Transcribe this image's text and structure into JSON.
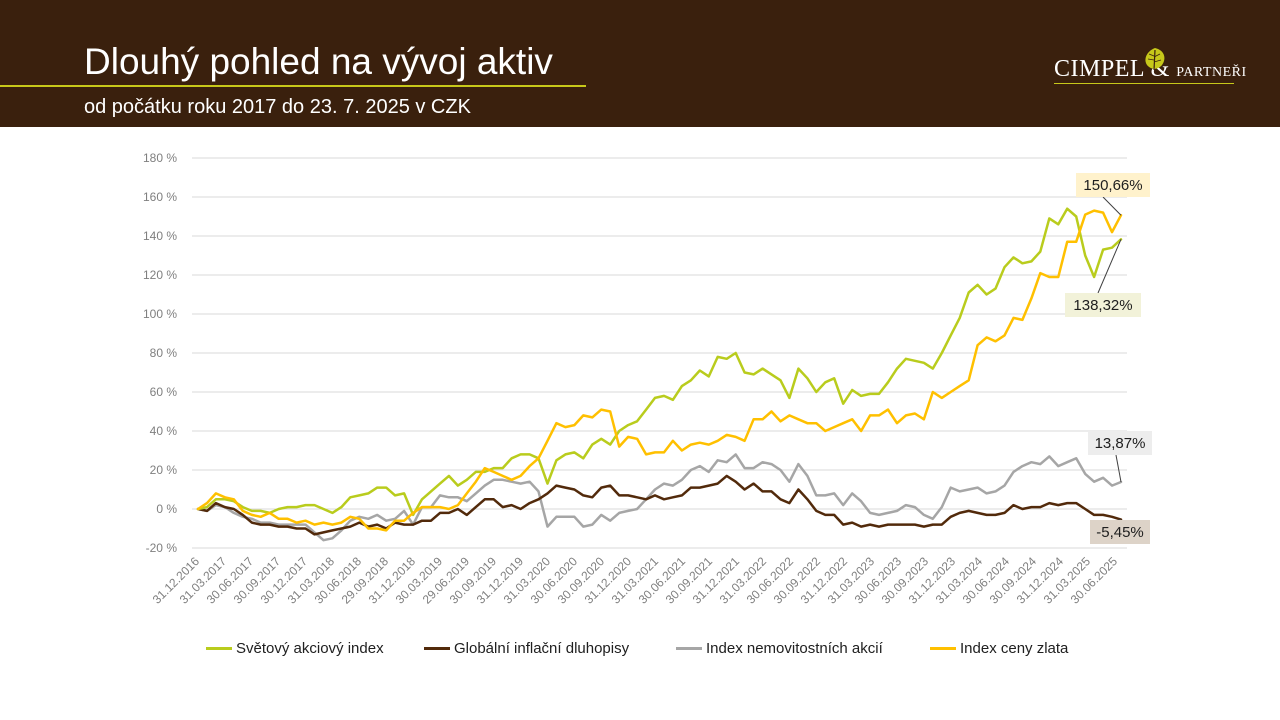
{
  "header": {
    "title": "Dlouhý pohled na vývoj aktiv",
    "subtitle": "od počátku roku 2017 do 23. 7. 2025 v CZK"
  },
  "logo": {
    "text_main": "CIMPEL",
    "text_amp": "&",
    "text_tail": "PARTNEŘI"
  },
  "colors": {
    "header_bg": "#3a200d",
    "accent": "#c7c81a",
    "world_equity": "#b9cc1d",
    "inflation_bonds": "#522a0b",
    "real_estate": "#a6a6a6",
    "gold": "#ffc000"
  },
  "chart_data": {
    "type": "line",
    "ylim": [
      -20,
      180
    ],
    "y_ticks": [
      -20,
      0,
      20,
      40,
      60,
      80,
      100,
      120,
      140,
      160,
      180
    ],
    "y_tick_labels": [
      "-20 %",
      "0 %",
      "20 %",
      "40 %",
      "60 %",
      "80 %",
      "100 %",
      "120 %",
      "140 %",
      "160 %",
      "180 %"
    ],
    "grid": true,
    "legend_position": "bottom",
    "x_labels": [
      "31.12.2016",
      "31.03.2017",
      "30.06.2017",
      "30.09.2017",
      "30.12.2017",
      "31.03.2018",
      "30.06.2018",
      "29.09.2018",
      "31.12.2018",
      "30.03.2019",
      "29.06.2019",
      "30.09.2019",
      "31.12.2019",
      "31.03.2020",
      "30.06.2020",
      "30.09.2020",
      "31.12.2020",
      "31.03.2021",
      "30.06.2021",
      "30.09.2021",
      "31.12.2021",
      "31.03.2022",
      "30.06.2022",
      "30.09.2022",
      "31.12.2022",
      "31.03.2023",
      "30.06.2023",
      "30.09.2023",
      "31.12.2023",
      "31.03.2024",
      "30.06.2024",
      "30.09.2024",
      "31.12.2024",
      "31.03.2025",
      "30.06.2025"
    ],
    "series": [
      {
        "name": "Světový akciový index",
        "color": "#b9cc1d",
        "end_label": "138,32%",
        "values": [
          0,
          1,
          5,
          5,
          4,
          1,
          -1,
          -1,
          -2,
          0,
          1,
          1,
          2,
          2,
          0,
          -2,
          1,
          6,
          7,
          8,
          11,
          11,
          7,
          8,
          -3,
          5,
          9,
          13,
          17,
          12,
          15,
          19,
          19,
          21,
          21,
          26,
          28,
          28,
          26,
          13,
          25,
          28,
          29,
          26,
          33,
          36,
          33,
          40,
          43,
          45,
          51,
          57,
          58,
          56,
          63,
          66,
          71,
          68,
          78,
          77,
          80,
          70,
          69,
          72,
          69,
          66,
          57,
          72,
          67,
          60,
          65,
          67,
          54,
          61,
          58,
          59,
          59,
          65,
          72,
          77,
          76,
          75,
          72,
          80,
          89,
          98,
          111,
          115,
          110,
          113,
          124,
          129,
          126,
          127,
          132,
          149,
          146,
          154,
          150,
          130,
          119,
          133,
          134,
          138.32
        ]
      },
      {
        "name": "Globální inflační dluhopisy",
        "color": "#522a0b",
        "end_label": "-5,45%",
        "values": [
          0,
          -1,
          3,
          1,
          0,
          -3,
          -7,
          -8,
          -8,
          -9,
          -9,
          -10,
          -10,
          -13,
          -12,
          -11,
          -10,
          -9,
          -7,
          -9,
          -8,
          -10,
          -7,
          -8,
          -8,
          -6,
          -6,
          -2,
          -2,
          0,
          -3,
          1,
          5,
          5,
          1,
          2,
          0,
          3,
          5,
          8,
          12,
          11,
          10,
          7,
          6,
          11,
          12,
          7,
          7,
          6,
          5,
          7,
          5,
          6,
          7,
          11,
          11,
          12,
          13,
          17,
          14,
          10,
          13,
          9,
          9,
          5,
          3,
          10,
          5,
          -1,
          -3,
          -3,
          -8,
          -7,
          -9,
          -8,
          -9,
          -8,
          -8,
          -8,
          -8,
          -9,
          -8,
          -8,
          -4,
          -2,
          -1,
          -2,
          -3,
          -3,
          -2,
          2,
          0,
          1,
          1,
          3,
          2,
          3,
          3,
          0,
          -3,
          -3,
          -4,
          -5.45
        ]
      },
      {
        "name": "Index nemovitostních akcií",
        "color": "#a6a6a6",
        "end_label": "13,87%",
        "values": [
          0,
          -1,
          2,
          1,
          -2,
          -4,
          -5,
          -7,
          -7,
          -8,
          -8,
          -8,
          -8,
          -12,
          -16,
          -15,
          -11,
          -6,
          -4,
          -5,
          -3,
          -6,
          -5,
          -1,
          -8,
          1,
          1,
          7,
          6,
          6,
          4,
          8,
          12,
          15,
          15,
          14,
          13,
          14,
          9,
          -9,
          -4,
          -4,
          -4,
          -9,
          -8,
          -3,
          -6,
          -2,
          -1,
          0,
          5,
          10,
          13,
          12,
          15,
          20,
          22,
          19,
          25,
          24,
          28,
          21,
          21,
          24,
          23,
          20,
          14,
          23,
          17,
          7,
          7,
          8,
          2,
          8,
          4,
          -2,
          -3,
          -2,
          -1,
          2,
          1,
          -3,
          -5,
          1,
          11,
          9,
          10,
          11,
          8,
          9,
          12,
          19,
          22,
          24,
          23,
          27,
          22,
          24,
          26,
          18,
          14,
          16,
          12,
          13.87
        ]
      },
      {
        "name": "Index ceny zlata",
        "color": "#ffc000",
        "end_label": "150,66%",
        "values": [
          0,
          3,
          8,
          6,
          5,
          -1,
          -3,
          -4,
          -2,
          -5,
          -5,
          -7,
          -6,
          -8,
          -7,
          -8,
          -7,
          -4,
          -5,
          -10,
          -10,
          -11,
          -6,
          -6,
          -2,
          1,
          1,
          1,
          0,
          2,
          8,
          14,
          21,
          19,
          17,
          15,
          17,
          22,
          26,
          35,
          44,
          42,
          43,
          48,
          47,
          51,
          50,
          32,
          37,
          36,
          28,
          29,
          29,
          35,
          30,
          33,
          34,
          33,
          35,
          38,
          37,
          35,
          46,
          46,
          50,
          45,
          48,
          46,
          44,
          44,
          40,
          42,
          44,
          46,
          40,
          48,
          48,
          51,
          44,
          48,
          49,
          46,
          60,
          57,
          60,
          63,
          66,
          84,
          88,
          86,
          89,
          98,
          97,
          108,
          121,
          119,
          119,
          137,
          137,
          151,
          153,
          152,
          142,
          150.66
        ]
      }
    ]
  }
}
